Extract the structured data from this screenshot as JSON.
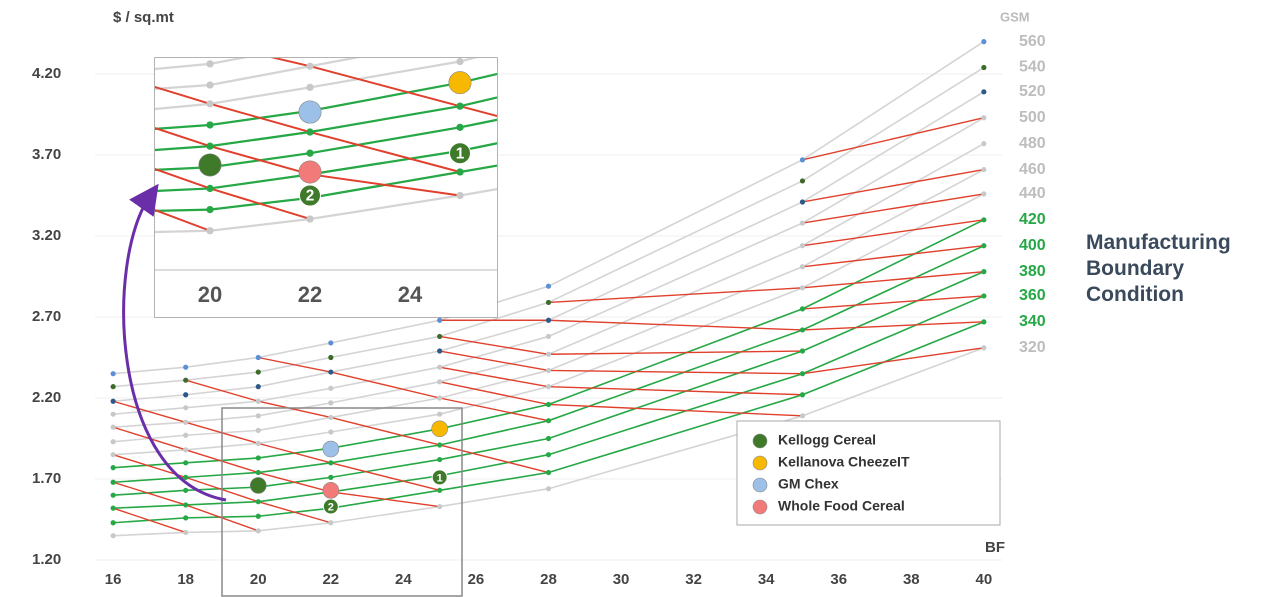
{
  "chart_data": {
    "type": "line",
    "y_label": "$ / sq.mt",
    "x_label": "BF",
    "right_label": "GSM",
    "annotation": "Manufacturing Boundary Condition",
    "x": [
      16,
      18,
      20,
      22,
      25,
      28,
      35,
      40
    ],
    "xlim": [
      15.5,
      40.5
    ],
    "xticks": [
      16,
      18,
      20,
      22,
      24,
      26,
      28,
      30,
      32,
      34,
      36,
      38,
      40
    ],
    "ylim": [
      1.2,
      4.45
    ],
    "yticks": [
      {
        "value": 1.2,
        "label": "1.20"
      },
      {
        "value": 1.7,
        "label": "1.70"
      },
      {
        "value": 2.2,
        "label": "2.20"
      },
      {
        "value": 2.7,
        "label": "2.70"
      },
      {
        "value": 3.2,
        "label": "3.20"
      },
      {
        "value": 3.7,
        "label": "3.70"
      },
      {
        "value": 4.2,
        "label": "4.20"
      }
    ],
    "grid": true,
    "series": [
      {
        "name": "320",
        "color": "#d4d4d4",
        "marker_color": "#c8c8c8",
        "values": [
          1.35,
          1.37,
          1.38,
          1.43,
          1.53,
          1.64,
          2.09,
          2.51
        ]
      },
      {
        "name": "340",
        "color": "#25a845",
        "marker_color": "#25a845",
        "values": [
          1.43,
          1.46,
          1.47,
          1.52,
          1.63,
          1.74,
          2.22,
          2.67
        ]
      },
      {
        "name": "360",
        "color": "#25a845",
        "marker_color": "#25a845",
        "values": [
          1.52,
          1.54,
          1.56,
          1.62,
          1.72,
          1.85,
          2.35,
          2.83
        ]
      },
      {
        "name": "380",
        "color": "#25a845",
        "marker_color": "#25a845",
        "values": [
          1.6,
          1.63,
          1.65,
          1.71,
          1.82,
          1.95,
          2.49,
          2.98
        ]
      },
      {
        "name": "400",
        "color": "#25a845",
        "marker_color": "#25a845",
        "values": [
          1.68,
          1.71,
          1.74,
          1.8,
          1.91,
          2.06,
          2.62,
          3.14
        ]
      },
      {
        "name": "420",
        "color": "#25a845",
        "marker_color": "#25a845",
        "values": [
          1.77,
          1.8,
          1.83,
          1.89,
          2.01,
          2.16,
          2.75,
          3.3
        ]
      },
      {
        "name": "440",
        "color": "#d4d4d4",
        "marker_color": "#c8c8c8",
        "values": [
          1.85,
          1.88,
          1.92,
          1.99,
          2.1,
          2.27,
          2.88,
          3.46
        ]
      },
      {
        "name": "460",
        "color": "#d4d4d4",
        "marker_color": "#c8c8c8",
        "values": [
          1.93,
          1.97,
          2.0,
          2.08,
          2.2,
          2.37,
          3.01,
          3.61
        ]
      },
      {
        "name": "480",
        "color": "#d4d4d4",
        "marker_color": "#c8c8c8",
        "values": [
          2.02,
          2.05,
          2.09,
          2.17,
          2.3,
          2.47,
          3.14,
          3.77
        ]
      },
      {
        "name": "500",
        "color": "#d4d4d4",
        "marker_color": "#c8c8c8",
        "values": [
          2.1,
          2.14,
          2.18,
          2.26,
          2.39,
          2.58,
          3.28,
          3.93
        ]
      },
      {
        "name": "520",
        "color": "#d4d4d4",
        "marker_color": "#2e5a8a",
        "values": [
          2.18,
          2.22,
          2.27,
          2.36,
          2.49,
          2.68,
          3.41,
          4.09
        ]
      },
      {
        "name": "540",
        "color": "#d4d4d4",
        "marker_color": "#3d6b2a",
        "values": [
          2.27,
          2.31,
          2.36,
          2.45,
          2.58,
          2.79,
          3.54,
          4.24
        ]
      },
      {
        "name": "560",
        "color": "#d4d4d4",
        "marker_color": "#5b8fd6",
        "values": [
          2.35,
          2.39,
          2.45,
          2.54,
          2.68,
          2.89,
          3.67,
          4.4
        ]
      }
    ],
    "cross_color": "#e0402c",
    "cross_lines": [
      {
        "x": [
          35,
          40
        ],
        "values": [
          3.67,
          3.93
        ]
      },
      {
        "x": [
          35,
          40
        ],
        "values": [
          3.41,
          3.61
        ]
      },
      {
        "x": [
          35,
          40
        ],
        "values": [
          3.28,
          3.46
        ]
      },
      {
        "x": [
          35,
          40
        ],
        "values": [
          3.14,
          3.3
        ]
      },
      {
        "x": [
          35,
          40
        ],
        "values": [
          3.01,
          3.14
        ]
      },
      {
        "x": [
          35,
          40
        ],
        "values": [
          2.88,
          2.98
        ]
      },
      {
        "x": [
          35,
          40
        ],
        "values": [
          2.75,
          2.83
        ]
      },
      {
        "x": [
          35,
          40
        ],
        "values": [
          2.62,
          2.67
        ]
      },
      {
        "x": [
          35,
          40
        ],
        "values": [
          2.35,
          2.51
        ]
      },
      {
        "x": [
          28,
          35
        ],
        "values": [
          2.79,
          2.88
        ]
      },
      {
        "x": [
          25,
          28,
          35
        ],
        "values": [
          2.68,
          2.68,
          2.62
        ]
      },
      {
        "x": [
          25,
          28,
          35
        ],
        "values": [
          2.58,
          2.47,
          2.49
        ]
      },
      {
        "x": [
          25,
          28,
          35
        ],
        "values": [
          2.49,
          2.37,
          2.35
        ]
      },
      {
        "x": [
          25,
          28,
          35
        ],
        "values": [
          2.39,
          2.27,
          2.22
        ]
      },
      {
        "x": [
          25,
          28,
          35
        ],
        "values": [
          2.3,
          2.16,
          2.09
        ]
      },
      {
        "x": [
          20,
          22,
          25,
          28
        ],
        "values": [
          2.45,
          2.36,
          2.2,
          2.06
        ]
      },
      {
        "x": [
          18,
          20,
          22,
          25,
          28
        ],
        "values": [
          2.31,
          2.18,
          2.08,
          1.91,
          1.74
        ]
      },
      {
        "x": [
          16,
          18,
          20,
          22,
          25
        ],
        "values": [
          2.18,
          2.05,
          1.92,
          1.8,
          1.63
        ]
      },
      {
        "x": [
          16,
          18,
          20,
          22,
          25
        ],
        "values": [
          2.02,
          1.88,
          1.74,
          1.62,
          1.53
        ]
      },
      {
        "x": [
          16,
          18,
          20,
          22
        ],
        "values": [
          1.85,
          1.71,
          1.56,
          1.43
        ]
      },
      {
        "x": [
          16,
          18,
          20
        ],
        "values": [
          1.68,
          1.54,
          1.38
        ]
      },
      {
        "x": [
          16,
          18
        ],
        "values": [
          1.52,
          1.37
        ]
      }
    ],
    "points": [
      {
        "name": "Kellogg Cereal",
        "color": "#3f7a2a",
        "x": 20,
        "value": 1.66
      },
      {
        "name": "Kellanova CheezeIT",
        "color": "#f6b800",
        "x": 25,
        "value": 2.01
      },
      {
        "name": "GM Chex",
        "color": "#9cc0e8",
        "x": 22,
        "value": 1.885
      },
      {
        "name": "Whole Food Cereal",
        "color": "#f27a78",
        "x": 22,
        "value": 1.63
      }
    ],
    "numbered_points": [
      {
        "label": "1",
        "color": "#3f7a2a",
        "x": 25,
        "value": 1.71
      },
      {
        "label": "2",
        "color": "#3f7a2a",
        "x": 22,
        "value": 1.53
      }
    ],
    "inset": {
      "xlim": [
        18.9,
        25.74
      ],
      "ylim": [
        1.213,
        2.115
      ],
      "xticks": [
        20,
        22,
        24,
        26
      ]
    }
  }
}
